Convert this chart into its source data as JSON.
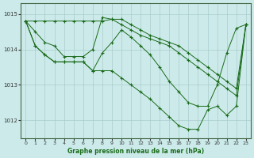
{
  "title": "Graphe pression niveau de la mer (hPa)",
  "bg_color": "#cceaea",
  "grid_color": "#aacccc",
  "line_color": "#1a6b1a",
  "ylim": [
    1011.5,
    1015.3
  ],
  "xlim": [
    -0.5,
    23.5
  ],
  "yticks": [
    1012,
    1013,
    1014,
    1015
  ],
  "xticks": [
    0,
    1,
    2,
    3,
    4,
    5,
    6,
    7,
    8,
    9,
    10,
    11,
    12,
    13,
    14,
    15,
    16,
    17,
    18,
    19,
    20,
    21,
    22,
    23
  ],
  "series": [
    [
      1014.8,
      1014.8,
      1014.8,
      1014.8,
      1014.8,
      1014.8,
      1014.8,
      1014.8,
      1014.8,
      1014.85,
      1014.85,
      1014.7,
      1014.55,
      1014.4,
      1014.3,
      1014.2,
      1014.1,
      1013.9,
      1013.7,
      1013.5,
      1013.3,
      1013.1,
      1012.9,
      1014.7
    ],
    [
      1014.8,
      1014.5,
      1014.2,
      1014.1,
      1013.8,
      1013.8,
      1013.8,
      1014.0,
      1014.9,
      1014.85,
      1014.7,
      1014.55,
      1014.4,
      1014.3,
      1014.2,
      1014.1,
      1013.9,
      1013.7,
      1013.5,
      1013.3,
      1013.1,
      1012.9,
      1012.7,
      1014.7
    ],
    [
      1014.8,
      1014.1,
      1013.85,
      1013.65,
      1013.65,
      1013.65,
      1013.65,
      1013.4,
      1013.9,
      1014.2,
      1014.55,
      1014.35,
      1014.1,
      1013.85,
      1013.5,
      1013.1,
      1012.8,
      1012.5,
      1012.4,
      1012.4,
      1013.0,
      1013.9,
      1014.6,
      1014.7
    ],
    [
      1014.8,
      1014.1,
      1013.85,
      1013.65,
      1013.65,
      1013.65,
      1013.65,
      1013.4,
      1013.4,
      1013.4,
      1013.2,
      1013.0,
      1012.8,
      1012.6,
      1012.35,
      1012.1,
      1011.85,
      1011.75,
      1011.75,
      1012.3,
      1012.4,
      1012.15,
      1012.4,
      1014.7
    ]
  ]
}
